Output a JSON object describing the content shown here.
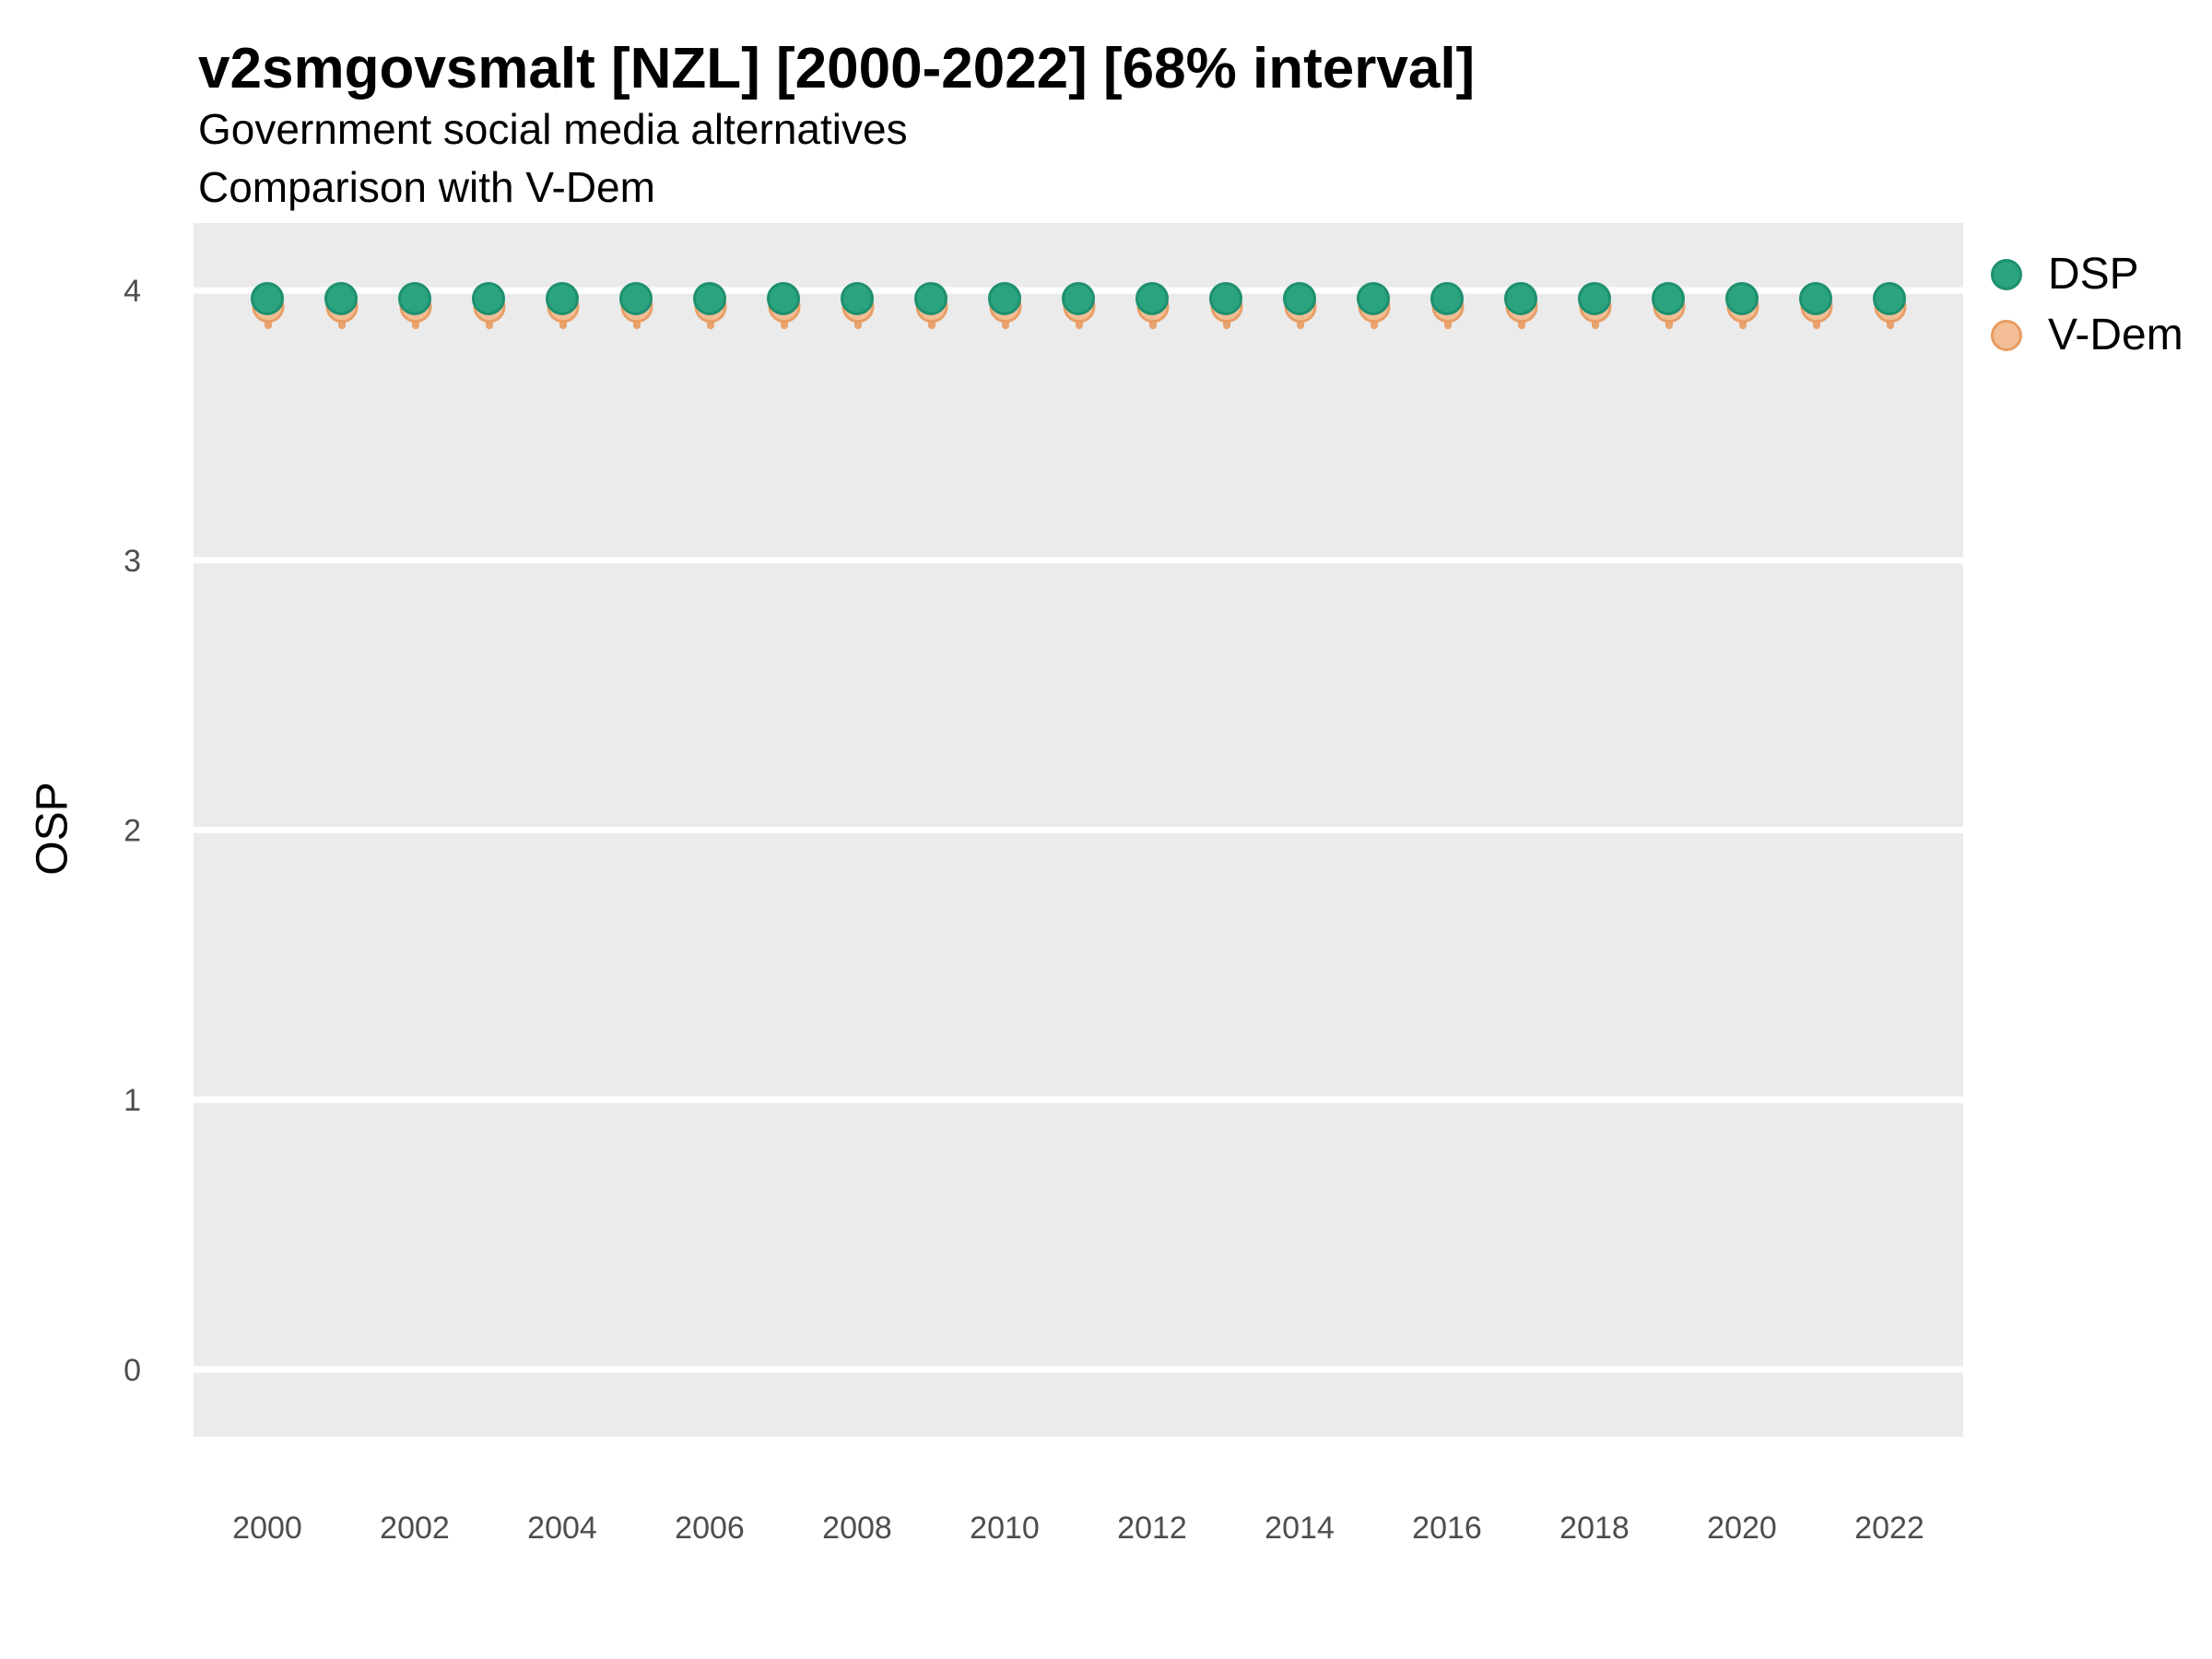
{
  "chart": {
    "title": "v2smgovsmalt [NZL] [2000-2022] [68% interval]",
    "subtitle1": "Government social media alternatives",
    "subtitle2": "Comparison with V-Dem"
  },
  "colors": {
    "figure_background": "#FFFFFF",
    "panel_background": "#EBEBEB",
    "grid_line": "#FFFFFF",
    "tick_label": "#4D4D4D",
    "text": "#000000"
  },
  "chart_data": {
    "type": "scatter",
    "title": "v2smgovsmalt [NZL] [2000-2022] [68% interval]",
    "subtitle": [
      "Government social media alternatives",
      "Comparison with V-Dem"
    ],
    "xlabel": "",
    "ylabel": "OSP",
    "interval_level": "68%",
    "x": [
      2000,
      2001,
      2002,
      2003,
      2004,
      2005,
      2006,
      2007,
      2008,
      2009,
      2010,
      2011,
      2012,
      2013,
      2014,
      2015,
      2016,
      2017,
      2018,
      2019,
      2020,
      2021,
      2022
    ],
    "x_tick_labels": [
      "2000",
      "2002",
      "2004",
      "2006",
      "2008",
      "2010",
      "2012",
      "2014",
      "2016",
      "2018",
      "2020",
      "2022"
    ],
    "y_tick_labels": [
      "0",
      "1",
      "2",
      "3",
      "4"
    ],
    "xlim": [
      1999,
      2023
    ],
    "ylim": [
      -0.25,
      4.25
    ],
    "grid": "horizontal-major-white",
    "legend_position": "right",
    "series": [
      {
        "name": "DSP",
        "marker": "circle",
        "color": "#2BA37E",
        "stroke": "#1E9070",
        "values": [
          3.97,
          3.97,
          3.97,
          3.97,
          3.97,
          3.97,
          3.97,
          3.97,
          3.97,
          3.97,
          3.97,
          3.97,
          3.97,
          3.97,
          3.97,
          3.97,
          3.97,
          3.97,
          3.97,
          3.97,
          3.97,
          3.97,
          3.97
        ]
      },
      {
        "name": "V-Dem",
        "marker": "circle-with-interval",
        "color": "#F3BE95",
        "stroke": "#E89C62",
        "interval_color": "#E89C62",
        "values": [
          3.94,
          3.94,
          3.94,
          3.94,
          3.94,
          3.94,
          3.94,
          3.94,
          3.94,
          3.94,
          3.94,
          3.94,
          3.94,
          3.94,
          3.94,
          3.94,
          3.94,
          3.94,
          3.94,
          3.94,
          3.94,
          3.94,
          3.94
        ],
        "interval_low": [
          3.87,
          3.87,
          3.87,
          3.87,
          3.87,
          3.87,
          3.87,
          3.87,
          3.87,
          3.87,
          3.87,
          3.87,
          3.87,
          3.87,
          3.87,
          3.87,
          3.87,
          3.87,
          3.87,
          3.87,
          3.87,
          3.87,
          3.87
        ],
        "interval_high": [
          3.99,
          3.99,
          3.99,
          3.99,
          3.99,
          3.99,
          3.99,
          3.99,
          3.99,
          3.99,
          3.99,
          3.99,
          3.99,
          3.99,
          3.99,
          3.99,
          3.99,
          3.99,
          3.99,
          3.99,
          3.99,
          3.99,
          3.99
        ]
      }
    ]
  }
}
